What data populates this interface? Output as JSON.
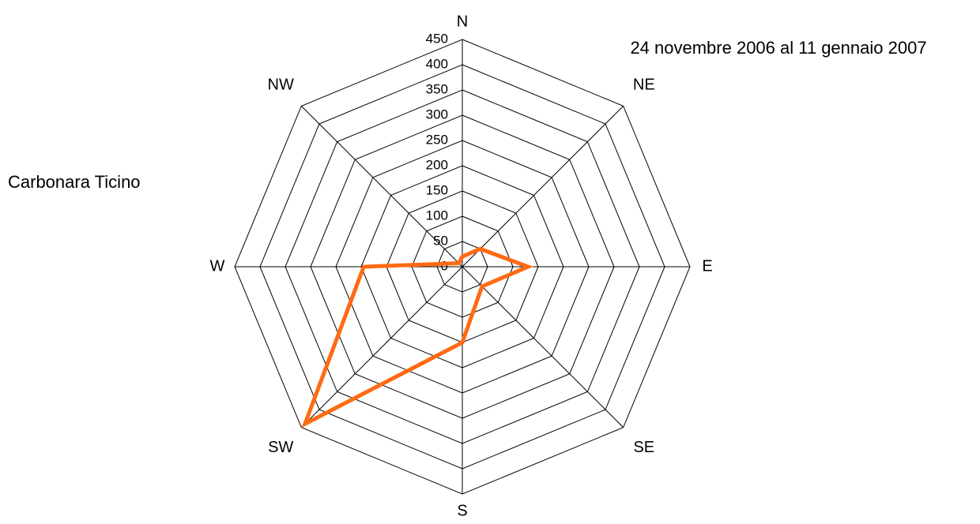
{
  "chart_data": {
    "type": "radar",
    "title": "24 novembre 2006 al 11 gennaio 2007",
    "subtitle": "Carbonara Ticino",
    "categories": [
      "N",
      "NE",
      "E",
      "SE",
      "S",
      "SW",
      "W",
      "NW"
    ],
    "values": [
      20,
      50,
      130,
      55,
      150,
      440,
      195,
      10
    ],
    "color": "#ff6a13",
    "ylim": [
      0,
      450
    ],
    "yticks": [
      0,
      50,
      100,
      150,
      200,
      250,
      300,
      350,
      400,
      450
    ],
    "grid": true
  }
}
